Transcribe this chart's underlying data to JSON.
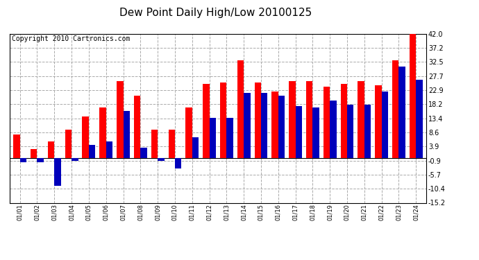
{
  "title": "Dew Point Daily High/Low 20100125",
  "copyright": "Copyright 2010 Cartronics.com",
  "labels": [
    "01/01",
    "01/02",
    "01/03",
    "01/04",
    "01/05",
    "01/06",
    "01/07",
    "01/08",
    "01/09",
    "01/10",
    "01/11",
    "01/12",
    "01/13",
    "01/14",
    "01/15",
    "01/16",
    "01/17",
    "01/18",
    "01/19",
    "01/20",
    "01/21",
    "01/22",
    "01/23",
    "01/24"
  ],
  "high": [
    8.0,
    3.0,
    5.5,
    9.5,
    14.0,
    17.0,
    26.0,
    21.0,
    9.5,
    9.5,
    17.0,
    25.0,
    25.5,
    33.0,
    25.5,
    22.5,
    26.0,
    26.0,
    24.0,
    25.0,
    26.0,
    24.5,
    33.0,
    42.0
  ],
  "low": [
    -1.5,
    -1.5,
    -9.5,
    -1.0,
    4.5,
    5.5,
    16.0,
    3.5,
    -1.0,
    -3.5,
    7.0,
    13.5,
    13.5,
    22.0,
    22.0,
    21.0,
    17.5,
    17.0,
    19.5,
    18.0,
    18.0,
    22.5,
    31.0,
    26.5
  ],
  "high_color": "#ff0000",
  "low_color": "#0000bb",
  "bg_color": "#ffffff",
  "plot_bg_color": "#ffffff",
  "grid_color": "#aaaaaa",
  "ylim": [
    -15.2,
    42.0
  ],
  "yticks": [
    -15.2,
    -10.4,
    -5.7,
    -0.9,
    3.9,
    8.6,
    13.4,
    18.2,
    22.9,
    27.7,
    32.5,
    37.2,
    42.0
  ],
  "title_fontsize": 11,
  "copyright_fontsize": 7
}
